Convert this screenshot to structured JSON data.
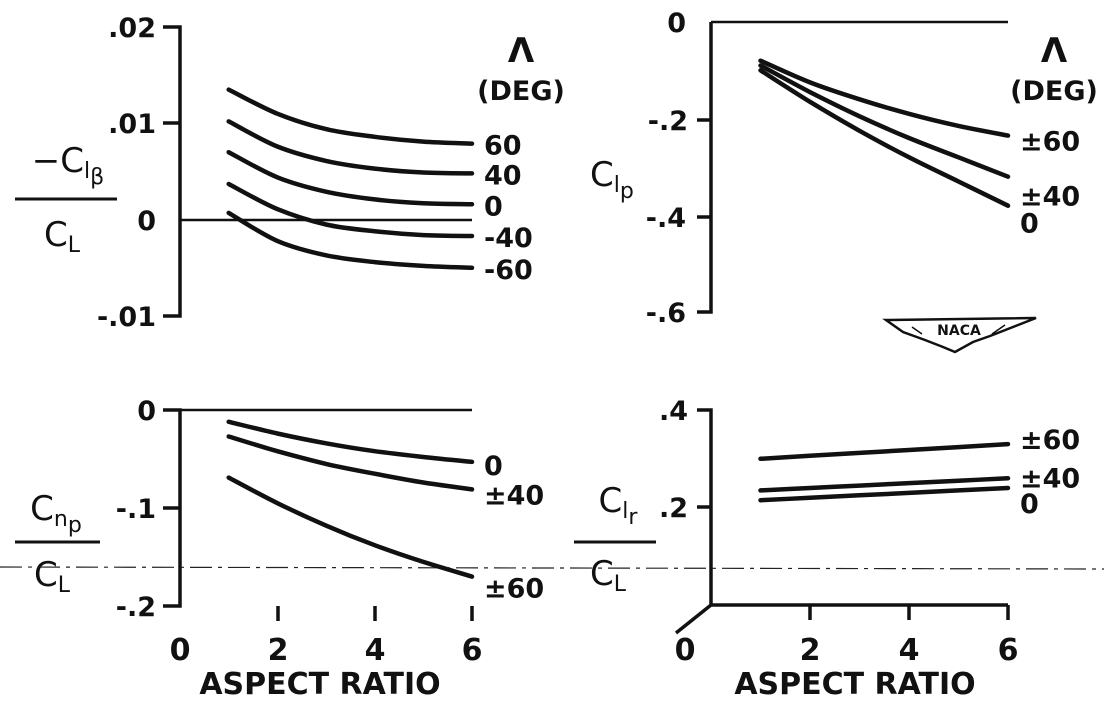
{
  "chart_data": [
    {
      "type": "line",
      "xlabel": "",
      "ylabel": "-Clβ / CL",
      "ylim": [
        -0.01,
        0.02
      ],
      "y_ticks": [
        ".02",
        ".01",
        "0",
        "-.01"
      ],
      "legend_title": [
        "Λ",
        "(DEG)"
      ],
      "series": [
        {
          "name": "60",
          "x": [
            1,
            2,
            3,
            4,
            5,
            6
          ],
          "values": [
            0.0135,
            0.011,
            0.0094,
            0.0086,
            0.0081,
            0.0079
          ]
        },
        {
          "name": "40",
          "x": [
            1,
            2,
            3,
            4,
            5,
            6
          ],
          "values": [
            0.0102,
            0.0076,
            0.0061,
            0.0053,
            0.0049,
            0.0048
          ]
        },
        {
          "name": "0",
          "x": [
            1,
            2,
            3,
            4,
            5,
            6
          ],
          "values": [
            0.007,
            0.0044,
            0.0029,
            0.0021,
            0.0017,
            0.0016
          ]
        },
        {
          "name": "-40",
          "x": [
            1,
            2,
            3,
            4,
            5,
            6
          ],
          "values": [
            0.0037,
            0.0011,
            -0.0005,
            -0.0012,
            -0.0016,
            -0.0017
          ]
        },
        {
          "name": "-60",
          "x": [
            1,
            2,
            3,
            4,
            5,
            6
          ],
          "values": [
            0.0007,
            -0.0022,
            -0.0037,
            -0.0044,
            -0.0048,
            -0.005
          ]
        }
      ]
    },
    {
      "type": "line",
      "xlabel": "",
      "ylabel": "Clp",
      "ylim": [
        -0.6,
        0
      ],
      "y_ticks": [
        "0",
        "-.2",
        "-.4",
        "-.6"
      ],
      "legend_title": [
        "Λ",
        "(DEG)"
      ],
      "series": [
        {
          "name": "±60",
          "x": [
            1,
            2,
            3,
            4,
            5,
            6
          ],
          "values": [
            -0.08,
            -0.125,
            -0.16,
            -0.19,
            -0.215,
            -0.235
          ]
        },
        {
          "name": "±40",
          "x": [
            1,
            2,
            3,
            4,
            5,
            6
          ],
          "values": [
            -0.09,
            -0.145,
            -0.195,
            -0.24,
            -0.28,
            -0.32
          ]
        },
        {
          "name": "0",
          "x": [
            1,
            2,
            3,
            4,
            5,
            6
          ],
          "values": [
            -0.1,
            -0.165,
            -0.225,
            -0.28,
            -0.33,
            -0.38
          ]
        }
      ]
    },
    {
      "type": "line",
      "xlabel": "ASPECT RATIO",
      "ylabel": "Cnp / CL",
      "ylim": [
        -0.2,
        0
      ],
      "x_ticks": [
        "0",
        "2",
        "4",
        "6"
      ],
      "y_ticks": [
        "0",
        "-.1",
        "-.2"
      ],
      "series": [
        {
          "name": "0",
          "x": [
            1,
            2,
            3,
            4,
            5,
            6
          ],
          "values": [
            -0.012,
            -0.024,
            -0.034,
            -0.042,
            -0.048,
            -0.053
          ]
        },
        {
          "name": "±40",
          "x": [
            1,
            2,
            3,
            4,
            5,
            6
          ],
          "values": [
            -0.027,
            -0.042,
            -0.055,
            -0.065,
            -0.074,
            -0.081
          ]
        },
        {
          "name": "±60",
          "x": [
            1,
            2,
            3,
            4,
            5,
            6
          ],
          "values": [
            -0.069,
            -0.095,
            -0.118,
            -0.138,
            -0.155,
            -0.17
          ]
        }
      ]
    },
    {
      "type": "line",
      "xlabel": "ASPECT RATIO",
      "ylabel": "Clr / CL",
      "ylim": [
        0,
        0.4
      ],
      "x_ticks": [
        "0",
        "2",
        "4",
        "6"
      ],
      "y_ticks": [
        ".4",
        ".2"
      ],
      "series": [
        {
          "name": "±60",
          "x": [
            1,
            2,
            3,
            4,
            5,
            6
          ],
          "values": [
            0.3,
            0.306,
            0.312,
            0.318,
            0.324,
            0.33
          ]
        },
        {
          "name": "±40",
          "x": [
            1,
            2,
            3,
            4,
            5,
            6
          ],
          "values": [
            0.235,
            0.24,
            0.245,
            0.25,
            0.255,
            0.26
          ]
        },
        {
          "name": "0",
          "x": [
            1,
            2,
            3,
            4,
            5,
            6
          ],
          "values": [
            0.215,
            0.22,
            0.225,
            0.23,
            0.235,
            0.24
          ]
        }
      ]
    }
  ],
  "logo": {
    "text": "NACA",
    "icon": "naca-wings-logo"
  }
}
